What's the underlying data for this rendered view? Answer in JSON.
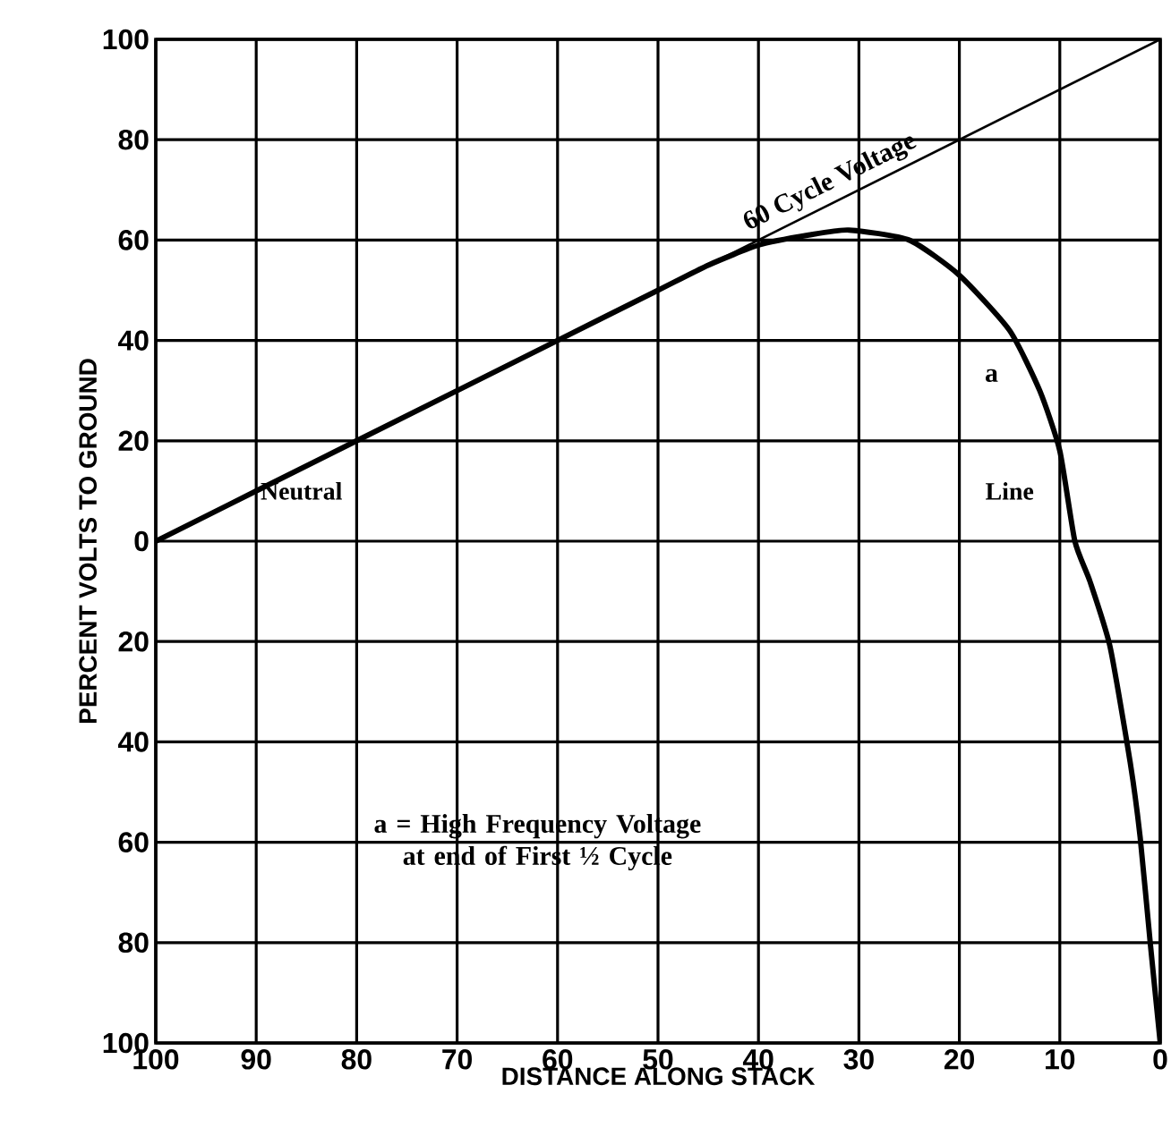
{
  "chart_data": {
    "type": "line",
    "xlabel": "DISTANCE ALONG STACK",
    "ylabel": "PERCENT VOLTS TO GROUND",
    "xlim": [
      100,
      0
    ],
    "xticks": [
      100,
      90,
      80,
      70,
      60,
      50,
      40,
      30,
      20,
      10,
      0
    ],
    "ylim": [
      -100,
      100
    ],
    "yticks": [
      {
        "value": -100,
        "label": "100"
      },
      {
        "value": -80,
        "label": "80"
      },
      {
        "value": -60,
        "label": "60"
      },
      {
        "value": -40,
        "label": "40"
      },
      {
        "value": -20,
        "label": "20"
      },
      0,
      20,
      40,
      60,
      80,
      100
    ],
    "grid": true,
    "marker": "none",
    "line_style": "solid",
    "series": [
      {
        "name": "60 Cycle Voltage",
        "color": "#000000",
        "x": [
          100,
          0
        ],
        "values": [
          0,
          100
        ]
      },
      {
        "name": "a",
        "color": "#000000",
        "x": [
          100,
          80,
          60,
          50,
          45,
          40,
          35,
          31,
          25,
          20,
          15,
          12,
          10,
          8.5,
          7,
          5,
          3,
          2,
          1,
          0
        ],
        "values": [
          0,
          20,
          40,
          50,
          55,
          59,
          61,
          62,
          60,
          53,
          42,
          30,
          18,
          0,
          -8,
          -21,
          -44,
          -59,
          -80,
          -100
        ]
      }
    ],
    "annotations": [
      "Neutral",
      "Line",
      "a = High Frequency Voltage at end of First ½ Cycle"
    ]
  }
}
